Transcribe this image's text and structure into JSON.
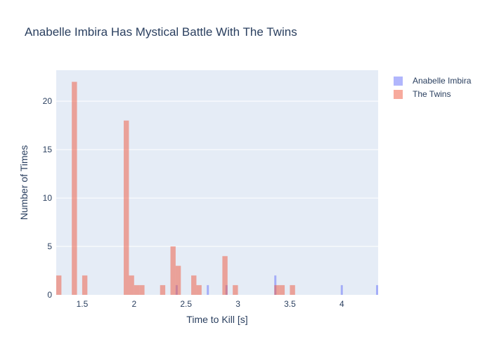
{
  "chart_data": {
    "type": "histogram",
    "title": "Anabelle Imbira Has Mystical Battle With The Twins",
    "xlabel": "Time to Kill [s]",
    "ylabel": "Number of Times",
    "xlim": [
      1.25,
      4.35
    ],
    "ylim": [
      0,
      23.2
    ],
    "bin_width": 0.05,
    "x_ticks": [
      1.5,
      2,
      2.5,
      3,
      3.5,
      4
    ],
    "x_tick_labels": [
      "1.5",
      "2",
      "2.5",
      "3",
      "3.5",
      "4"
    ],
    "y_ticks": [
      0,
      5,
      10,
      15,
      20
    ],
    "y_tick_labels": [
      "0",
      "5",
      "10",
      "15",
      "20"
    ],
    "grid": true,
    "legend_position": "top-right",
    "series": [
      {
        "name": "Anabelle Imbira",
        "color": "#636efa",
        "opacity": 0.5,
        "bins": [
          {
            "x0": 2.4,
            "x1": 2.42,
            "count": 1
          },
          {
            "x0": 2.7,
            "x1": 2.72,
            "count": 1
          },
          {
            "x0": 2.88,
            "x1": 2.9,
            "count": 1
          },
          {
            "x0": 3.35,
            "x1": 3.37,
            "count": 2
          },
          {
            "x0": 3.99,
            "x1": 4.01,
            "count": 1
          },
          {
            "x0": 4.33,
            "x1": 4.35,
            "count": 1
          }
        ]
      },
      {
        "name": "The Twins",
        "color": "#ef553b",
        "opacity": 0.5,
        "bins": [
          {
            "x0": 1.25,
            "x1": 1.3,
            "count": 2
          },
          {
            "x0": 1.4,
            "x1": 1.45,
            "count": 22
          },
          {
            "x0": 1.5,
            "x1": 1.55,
            "count": 2
          },
          {
            "x0": 1.9,
            "x1": 1.95,
            "count": 18
          },
          {
            "x0": 1.95,
            "x1": 2.0,
            "count": 2
          },
          {
            "x0": 2.0,
            "x1": 2.05,
            "count": 1
          },
          {
            "x0": 2.05,
            "x1": 2.1,
            "count": 1
          },
          {
            "x0": 2.25,
            "x1": 2.3,
            "count": 1
          },
          {
            "x0": 2.35,
            "x1": 2.4,
            "count": 5
          },
          {
            "x0": 2.4,
            "x1": 2.45,
            "count": 3
          },
          {
            "x0": 2.55,
            "x1": 2.6,
            "count": 2
          },
          {
            "x0": 2.6,
            "x1": 2.65,
            "count": 1
          },
          {
            "x0": 2.85,
            "x1": 2.9,
            "count": 4
          },
          {
            "x0": 2.95,
            "x1": 3.0,
            "count": 1
          },
          {
            "x0": 3.35,
            "x1": 3.4,
            "count": 1
          },
          {
            "x0": 3.4,
            "x1": 3.45,
            "count": 1
          },
          {
            "x0": 3.5,
            "x1": 3.55,
            "count": 1
          }
        ]
      }
    ]
  }
}
